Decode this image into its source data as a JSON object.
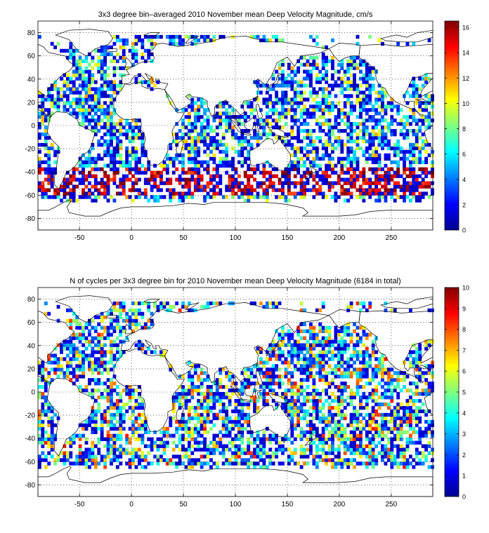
{
  "figure": {
    "domain_note": "Two world-map binned heatmaps with colorbars"
  },
  "chart_data": [
    {
      "type": "heatmap",
      "title": "3x3 degree bin–averaged 2010 November mean Deep Velocity Magnitude, cm/s",
      "xlabel": "",
      "ylabel": "",
      "xlim": [
        -90,
        290
      ],
      "ylim": [
        -90,
        90
      ],
      "x_ticks": [
        -50,
        0,
        50,
        100,
        150,
        200,
        250
      ],
      "y_ticks": [
        80,
        60,
        40,
        20,
        0,
        -20,
        -40,
        -60,
        -80
      ],
      "grid": true,
      "colorbar": {
        "range": [
          0,
          16.5
        ],
        "ticks": [
          0,
          2,
          4,
          6,
          8,
          10,
          12,
          14,
          16
        ],
        "colormap": "jet",
        "placement": "right"
      },
      "bin_size_deg": 3
    },
    {
      "type": "heatmap",
      "title": "N of cycles per 3x3 degree bin for 2010 November mean Deep Velocity Magnitude (6184 in total)",
      "xlabel": "",
      "ylabel": "",
      "xlim": [
        -90,
        290
      ],
      "ylim": [
        -90,
        90
      ],
      "x_ticks": [
        -50,
        0,
        50,
        100,
        150,
        200,
        250
      ],
      "y_ticks": [
        80,
        60,
        40,
        20,
        0,
        -20,
        -40,
        -60,
        -80
      ],
      "grid": true,
      "colorbar": {
        "range": [
          0,
          10
        ],
        "ticks": [
          0,
          1,
          2,
          3,
          4,
          5,
          6,
          7,
          8,
          9,
          10
        ],
        "colormap": "jet",
        "placement": "right"
      },
      "bin_size_deg": 3,
      "total_cycles": 6184
    }
  ],
  "colors": {
    "axis": "#000000",
    "grid": "#000000",
    "coast": "#000000"
  }
}
